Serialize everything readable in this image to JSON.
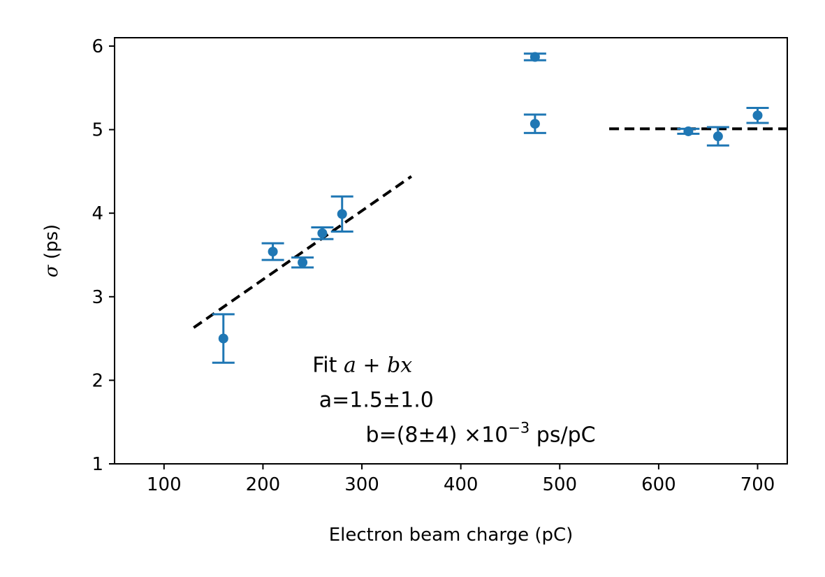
{
  "chart_data": {
    "type": "scatter",
    "title": "",
    "xlabel": "Electron beam charge (pC)",
    "ylabel_symbol": "σ",
    "ylabel_unit": " (ps)",
    "xlim": [
      50,
      730
    ],
    "ylim": [
      1,
      6.1
    ],
    "xticks": [
      100,
      200,
      300,
      400,
      500,
      600,
      700
    ],
    "yticks": [
      1,
      2,
      3,
      4,
      5,
      6
    ],
    "grid": false,
    "legend": "none",
    "marker_color": "#1f77b4",
    "fit_line_color": "#000000",
    "series": [
      {
        "points": [
          {
            "x": 160,
            "y": 2.5,
            "err": 0.29
          },
          {
            "x": 210,
            "y": 3.54,
            "err": 0.1
          },
          {
            "x": 240,
            "y": 3.41,
            "err": 0.06
          },
          {
            "x": 260,
            "y": 3.76,
            "err": 0.07
          },
          {
            "x": 280,
            "y": 3.99,
            "err": 0.21
          },
          {
            "x": 475,
            "y": 5.07,
            "err": 0.11
          },
          {
            "x": 475,
            "y": 5.87,
            "err": 0.04
          },
          {
            "x": 630,
            "y": 4.98,
            "err": 0.03
          },
          {
            "x": 660,
            "y": 4.92,
            "err": 0.11
          },
          {
            "x": 700,
            "y": 5.17,
            "err": 0.09
          }
        ]
      }
    ],
    "fit_lines": [
      {
        "x": [
          130,
          350
        ],
        "y": [
          2.63,
          4.44
        ],
        "style": "dashed"
      },
      {
        "x": [
          550,
          730
        ],
        "y": [
          5.01,
          5.01
        ],
        "style": "dashed"
      }
    ],
    "annotation": {
      "line1_prefix": "Fit ",
      "line1_formula": "a + bx",
      "line2": " a=1.5±1.0",
      "line3_prefix": " b=(8±4) ×10",
      "line3_exp": "−3",
      "line3_suffix": " ps/pC",
      "anchor": {
        "x": 250,
        "y": 2.1
      }
    }
  }
}
